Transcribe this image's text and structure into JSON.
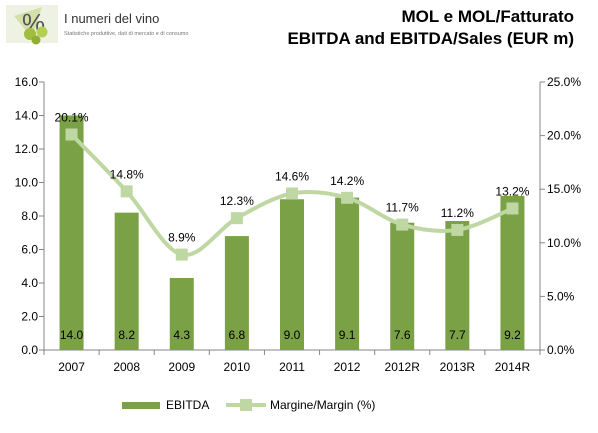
{
  "header": {
    "logo_title": "I numeri del vino",
    "logo_subtitle": "Statistiche produttive, dati di mercato e di consumo",
    "title_line1": "MOL e MOL/Fatturato",
    "title_line2": "EBITDA and EBITDA/Sales (EUR m)"
  },
  "colors": {
    "bar": "#7ba146",
    "line": "#bfd8a3",
    "axis": "#868686",
    "logo_accent": "#9fbe3d"
  },
  "chart_data": {
    "type": "bar",
    "title": "MOL e MOL/Fatturato / EBITDA and EBITDA/Sales (EUR m)",
    "categories": [
      "2007",
      "2008",
      "2009",
      "2010",
      "2011",
      "2012",
      "2012R",
      "2013R",
      "2014R"
    ],
    "y_left": {
      "min": 0,
      "max": 16,
      "step": 2,
      "tick_labels": [
        "0.0",
        "2.0",
        "4.0",
        "6.0",
        "8.0",
        "10.0",
        "12.0",
        "14.0",
        "16.0"
      ]
    },
    "y_right": {
      "min": 0,
      "max": 25,
      "step": 5,
      "tick_labels": [
        "0.0%",
        "5.0%",
        "10.0%",
        "15.0%",
        "20.0%",
        "25.0%"
      ]
    },
    "series": [
      {
        "name": "EBITDA",
        "type": "bar",
        "axis": "left",
        "values": [
          14.0,
          8.2,
          4.3,
          6.8,
          9.0,
          9.1,
          7.6,
          7.7,
          9.2
        ],
        "labels": [
          "14.0",
          "8.2",
          "4.3",
          "6.8",
          "9.0",
          "9.1",
          "7.6",
          "7.7",
          "9.2"
        ]
      },
      {
        "name": "Margine/Margin (%)",
        "type": "line",
        "smooth": true,
        "axis": "right",
        "values": [
          20.1,
          14.8,
          8.9,
          12.3,
          14.6,
          14.2,
          11.7,
          11.2,
          13.2
        ],
        "labels": [
          "20.1%",
          "14.8%",
          "8.9%",
          "12.3%",
          "14.6%",
          "14.2%",
          "11.7%",
          "11.2%",
          "13.2%"
        ]
      }
    ],
    "grid": false,
    "legend": "bottom"
  }
}
